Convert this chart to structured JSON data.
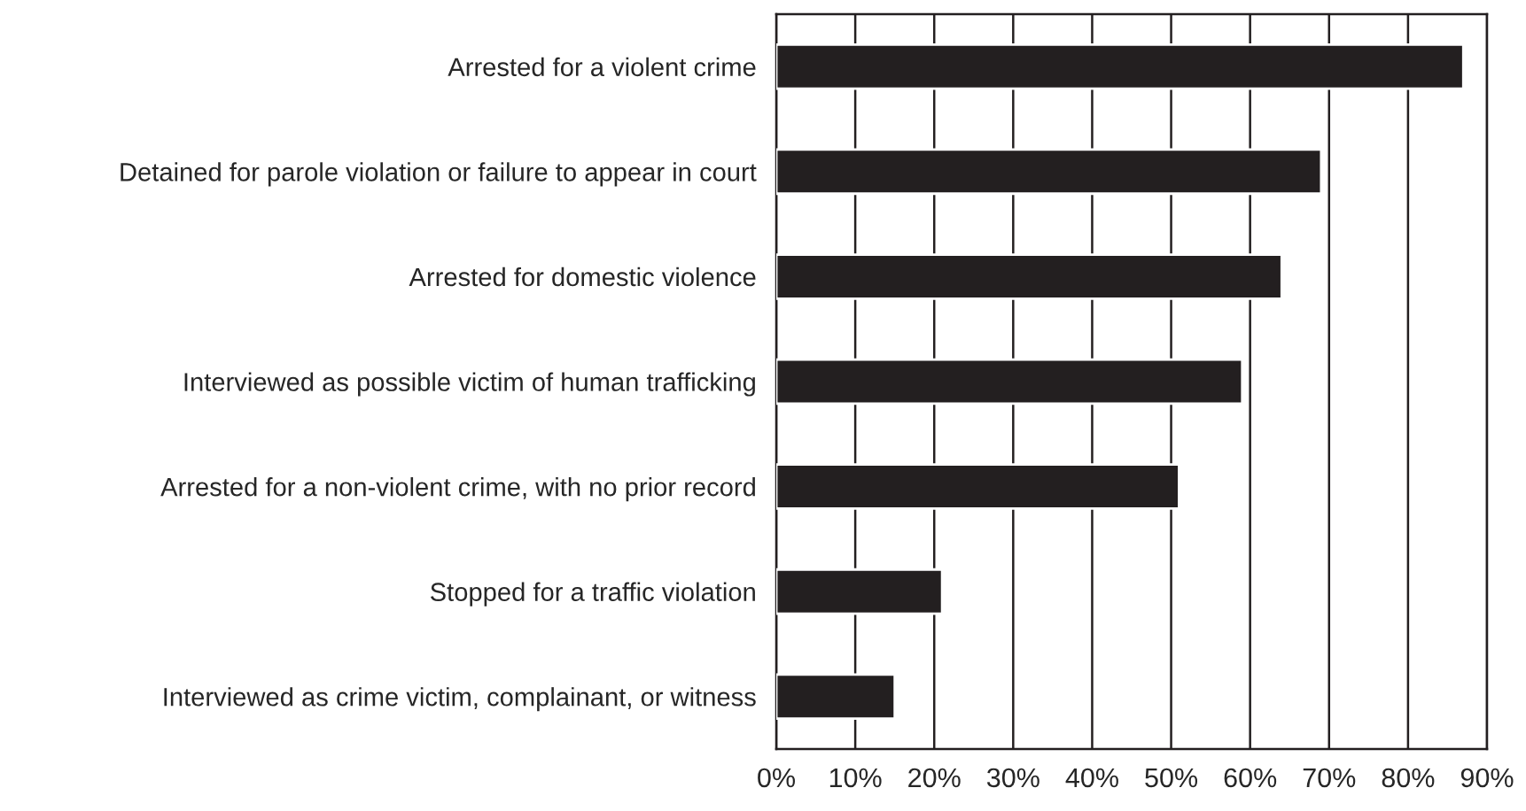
{
  "chart_data": {
    "type": "bar",
    "orientation": "horizontal",
    "categories": [
      "Arrested for a violent crime",
      "Detained for parole violation or failure to appear in court",
      "Arrested for domestic violence",
      "Interviewed as possible victim of human trafficking",
      "Arrested for a non-violent crime, with no prior record",
      "Stopped for a traffic violation",
      "Interviewed as crime victim, complainant, or witness"
    ],
    "values": [
      87,
      69,
      64,
      59,
      51,
      21,
      15
    ],
    "color": "#231f20",
    "xlim": [
      0,
      90
    ],
    "xticks": [
      {
        "value": 0,
        "label": "0%"
      },
      {
        "value": 10,
        "label": "10%"
      },
      {
        "value": 20,
        "label": "20%"
      },
      {
        "value": 30,
        "label": "30%"
      },
      {
        "value": 40,
        "label": "40%"
      },
      {
        "value": 50,
        "label": "50%"
      },
      {
        "value": 60,
        "label": "60%"
      },
      {
        "value": 70,
        "label": "70%"
      },
      {
        "value": 80,
        "label": "80%"
      },
      {
        "value": 90,
        "label": "90%"
      }
    ],
    "grid": "x",
    "legend": false
  }
}
